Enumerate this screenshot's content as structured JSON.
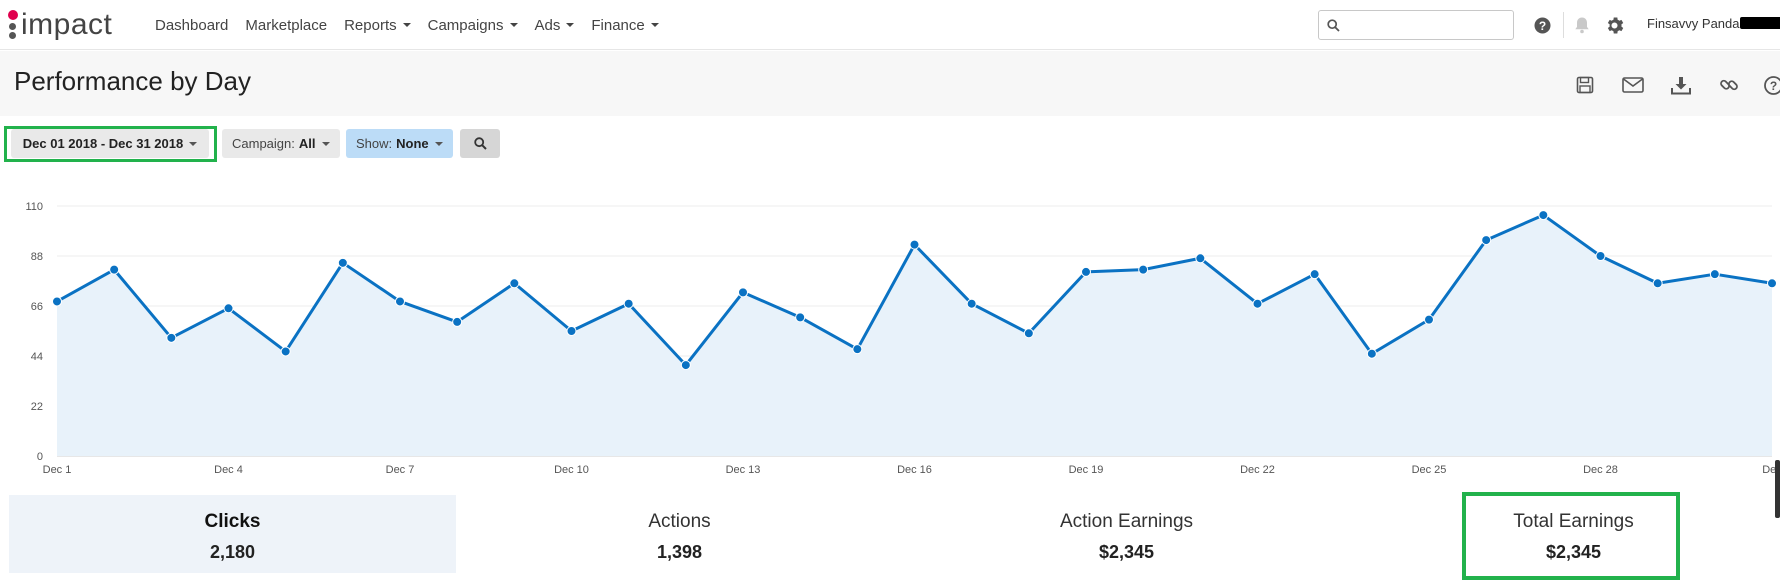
{
  "nav": {
    "logo_text": "impact",
    "links": [
      {
        "label": "Dashboard",
        "has_caret": false
      },
      {
        "label": "Marketplace",
        "has_caret": false
      },
      {
        "label": "Reports",
        "has_caret": true
      },
      {
        "label": "Campaigns",
        "has_caret": true
      },
      {
        "label": "Ads",
        "has_caret": true
      },
      {
        "label": "Finance",
        "has_caret": true
      }
    ],
    "search_placeholder": "",
    "icons": [
      "help-icon",
      "bell-icon",
      "gear-icon"
    ],
    "username": "Finsavvy Panda"
  },
  "page": {
    "title": "Performance by Day",
    "actions": [
      "save-icon",
      "email-icon",
      "download-icon",
      "link-icon",
      "help-icon"
    ]
  },
  "filters": {
    "date_range": "Dec 01 2018 - Dec 31 2018",
    "campaign_label": "Campaign:",
    "campaign_value": "All",
    "show_label": "Show:",
    "show_value": "None"
  },
  "colors": {
    "accent": "#0a72c3",
    "area_fill": "#e8f2fa",
    "highlight": "#22b24c",
    "brand_red": "#e0004d"
  },
  "chart_data": {
    "type": "line",
    "x": [
      "Dec 1",
      "Dec 2",
      "Dec 3",
      "Dec 4",
      "Dec 5",
      "Dec 6",
      "Dec 7",
      "Dec 8",
      "Dec 9",
      "Dec 10",
      "Dec 11",
      "Dec 12",
      "Dec 13",
      "Dec 14",
      "Dec 15",
      "Dec 16",
      "Dec 17",
      "Dec 18",
      "Dec 19",
      "Dec 20",
      "Dec 21",
      "Dec 22",
      "Dec 23",
      "Dec 24",
      "Dec 25",
      "Dec 26",
      "Dec 27",
      "Dec 28",
      "Dec 29",
      "Dec 30",
      "Dec 31"
    ],
    "series": [
      {
        "name": "",
        "values": [
          68,
          82,
          52,
          65,
          46,
          85,
          68,
          59,
          76,
          55,
          67,
          40,
          72,
          61,
          47,
          93,
          67,
          54,
          81,
          82,
          87,
          67,
          80,
          45,
          60,
          95,
          106,
          88,
          76,
          80,
          76
        ]
      }
    ],
    "yticks": [
      0,
      22,
      44,
      66,
      88,
      110
    ],
    "xtick_labels": [
      "Dec 1",
      "Dec 4",
      "Dec 7",
      "Dec 10",
      "Dec 13",
      "Dec 16",
      "Dec 19",
      "Dec 22",
      "Dec 25",
      "Dec 28",
      "Dec"
    ],
    "ylim": [
      0,
      110
    ],
    "grid": true,
    "area_fill": true,
    "title": "",
    "xlabel": "",
    "ylabel": ""
  },
  "stats": [
    {
      "label": "Clicks",
      "value": "2,180"
    },
    {
      "label": "Actions",
      "value": "1,398"
    },
    {
      "label": "Action Earnings",
      "value": "$2,345"
    },
    {
      "label": "Total Earnings",
      "value": "$2,345"
    }
  ]
}
